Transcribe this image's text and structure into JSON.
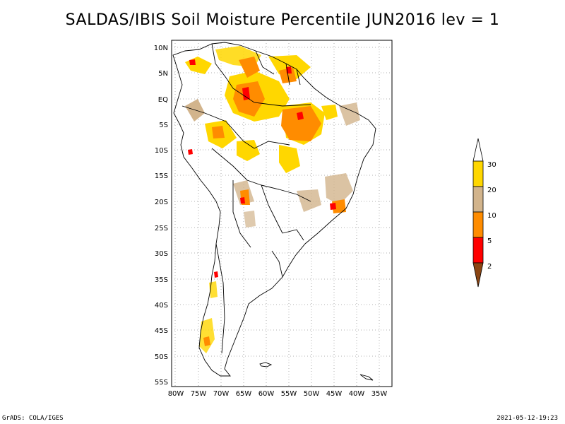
{
  "title": "SALDAS/IBIS Soil Moisture Percentile JUN2016 lev = 1",
  "map": {
    "region": "South America",
    "lat_labels": [
      "10N",
      "5N",
      "EQ",
      "5S",
      "10S",
      "15S",
      "20S",
      "25S",
      "30S",
      "35S",
      "40S",
      "45S",
      "50S",
      "55S"
    ],
    "lon_labels": [
      "80W",
      "75W",
      "70W",
      "65W",
      "60W",
      "55W",
      "50W",
      "45W",
      "40W",
      "35W"
    ],
    "grid": "dotted"
  },
  "legend": {
    "levels": [
      "2",
      "5",
      "10",
      "20",
      "30"
    ],
    "colors": {
      "below_2": "#8B4513",
      "2_5": "#ff0000",
      "5_10": "#ff8c00",
      "10_20": "#d2b48c",
      "20_30": "#ffd700",
      "above_30": "#ffffff"
    }
  },
  "footer": {
    "left": "GrADS: COLA/IGES",
    "right": "2021-05-12-19:23"
  }
}
